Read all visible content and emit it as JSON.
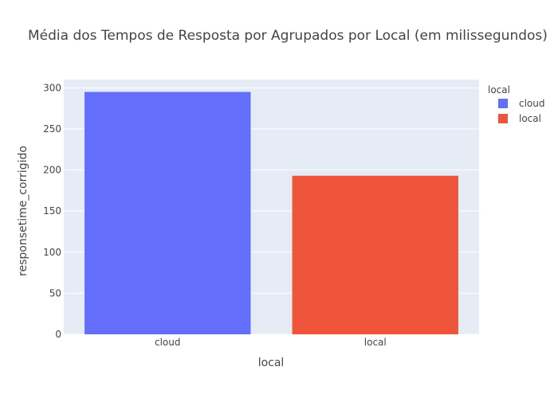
{
  "chart_data": {
    "type": "bar",
    "title": "Média dos Tempos de Resposta por Agrupados por Local  (em milissegundos)",
    "xlabel": "local",
    "ylabel": "responsetime_corrigido",
    "categories": [
      "cloud",
      "local"
    ],
    "series": [
      {
        "name": "cloud",
        "category": "cloud",
        "value": 295,
        "color": "#636efa"
      },
      {
        "name": "local",
        "category": "local",
        "value": 193,
        "color": "#ef553b"
      }
    ],
    "ylim": [
      0,
      310
    ],
    "yticks": [
      0,
      50,
      100,
      150,
      200,
      250,
      300
    ],
    "grid": true,
    "plot_background": "#e5ecf6",
    "legend": {
      "title": "local",
      "placement": "top-right"
    }
  }
}
